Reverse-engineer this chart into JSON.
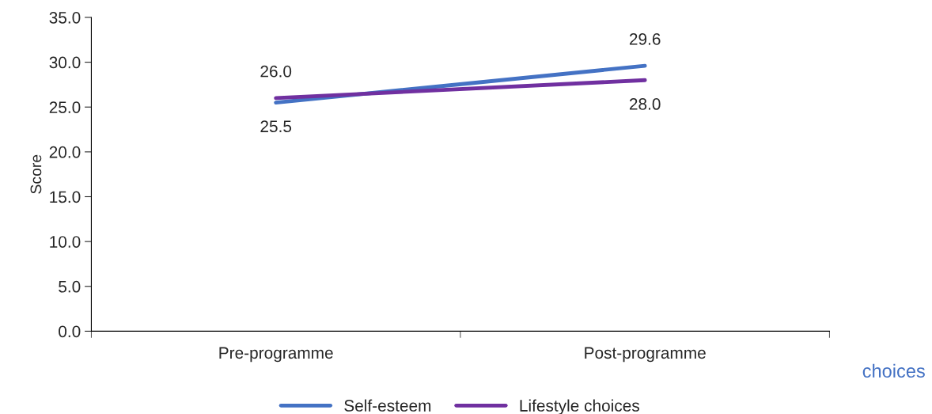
{
  "chart_data": {
    "type": "line",
    "ylabel": "Score",
    "categories": [
      "Pre-programme",
      "Post-programme"
    ],
    "series": [
      {
        "name": "Self-esteem",
        "color": "#4472c4",
        "values": [
          25.5,
          29.6
        ],
        "value_labels": [
          "25.5",
          "29.6"
        ]
      },
      {
        "name": "Lifestyle choices",
        "color": "#7030a0",
        "values": [
          26.0,
          28.0
        ],
        "value_labels": [
          "26.0",
          "28.0"
        ]
      }
    ],
    "ylim": [
      0,
      35
    ],
    "yticks": [
      {
        "value": 0,
        "label": "0.0"
      },
      {
        "value": 5,
        "label": "5.0"
      },
      {
        "value": 10,
        "label": "10.0"
      },
      {
        "value": 15,
        "label": "15.0"
      },
      {
        "value": 20,
        "label": "20.0"
      },
      {
        "value": 25,
        "label": "25.0"
      },
      {
        "value": 30,
        "label": "30.0"
      },
      {
        "value": 35,
        "label": "35.0"
      }
    ],
    "grid": false,
    "legend": "bottom",
    "marker": "none",
    "line_style": "solid",
    "annotations": [
      "choices"
    ]
  }
}
